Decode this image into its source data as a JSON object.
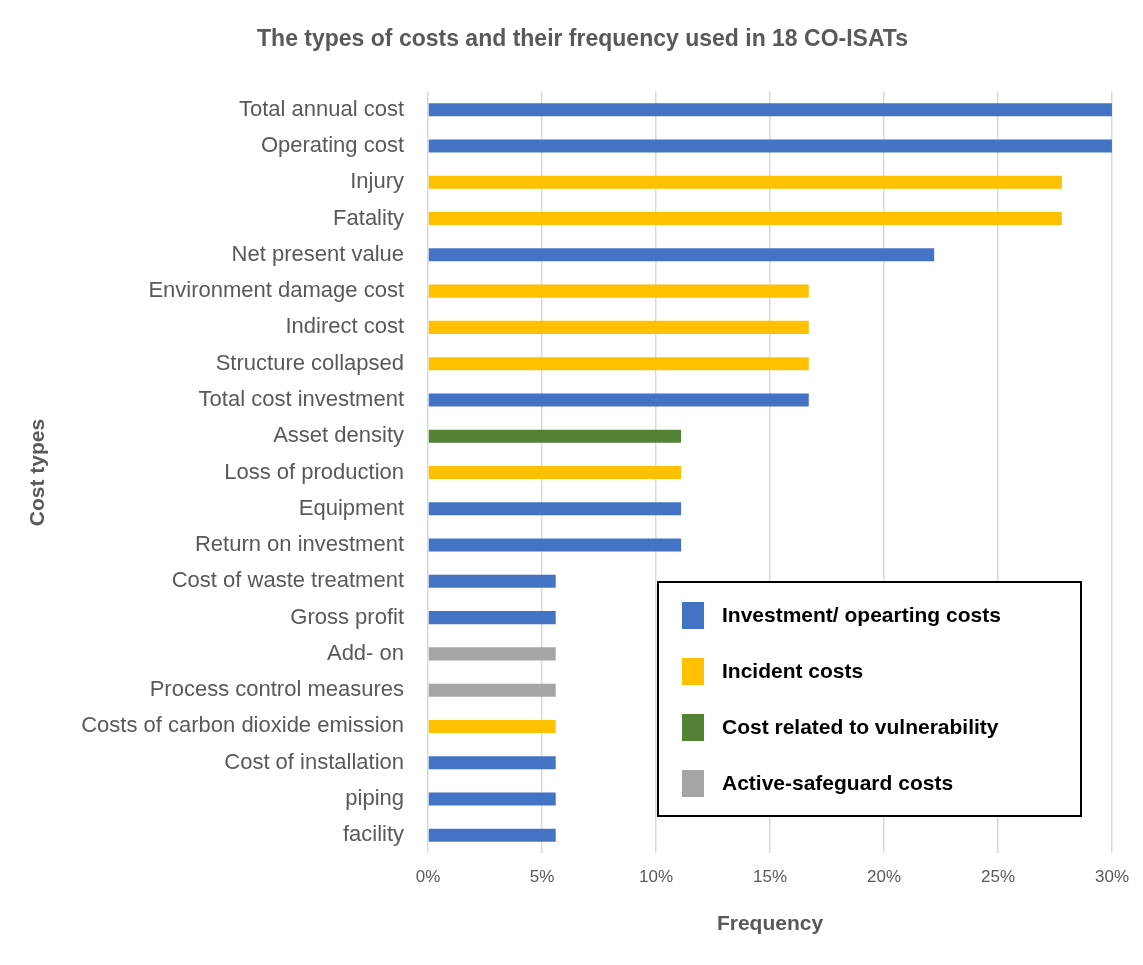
{
  "chart_data": {
    "type": "bar",
    "orientation": "horizontal",
    "title": "The types of costs and their frequency used in 18 CO-ISATs",
    "xlabel": "Frequency",
    "ylabel": "Cost types",
    "categories": [
      "Total annual cost",
      "Operating cost",
      "Injury",
      "Fatality",
      "Net present value",
      "Environment damage cost",
      "Indirect cost",
      "Structure collapsed",
      "Total cost investment",
      "Asset density",
      "Loss of production",
      "Equipment",
      "Return on investment",
      "Cost of waste treatment",
      "Gross profit",
      "Add- on",
      "Process control measures",
      "Costs of carbon dioxide emission",
      "Cost of installation",
      "piping",
      "facility"
    ],
    "series": [
      {
        "name": "Investment/ opearting costs",
        "color": "#4472c4",
        "values": [
          30,
          30,
          null,
          null,
          22.2,
          null,
          null,
          null,
          16.7,
          null,
          null,
          11.1,
          11.1,
          5.6,
          5.6,
          null,
          null,
          null,
          5.6,
          5.6,
          5.6
        ]
      },
      {
        "name": "Incident costs",
        "color": "#ffc000",
        "values": [
          null,
          null,
          27.8,
          27.8,
          null,
          16.7,
          16.7,
          16.7,
          null,
          null,
          11.1,
          null,
          null,
          null,
          null,
          null,
          null,
          5.6,
          null,
          null,
          null
        ]
      },
      {
        "name": "Cost related to vulnerability",
        "color": "#548235",
        "values": [
          null,
          null,
          null,
          null,
          null,
          null,
          null,
          null,
          null,
          11.1,
          null,
          null,
          null,
          null,
          null,
          null,
          null,
          null,
          null,
          null,
          null
        ]
      },
      {
        "name": "Active-safeguard costs",
        "color": "#a5a5a5",
        "values": [
          null,
          null,
          null,
          null,
          null,
          null,
          null,
          null,
          null,
          null,
          null,
          null,
          null,
          null,
          null,
          5.6,
          5.6,
          null,
          null,
          null,
          null
        ]
      }
    ],
    "xlim": [
      0,
      30
    ],
    "xticks": [
      {
        "value": 0,
        "label": "0%"
      },
      {
        "value": 5,
        "label": "5%"
      },
      {
        "value": 10,
        "label": "10%"
      },
      {
        "value": 15,
        "label": "15%"
      },
      {
        "value": 20,
        "label": "20%"
      },
      {
        "value": 25,
        "label": "25%"
      },
      {
        "value": 30,
        "label": "30%"
      }
    ],
    "grid": "x",
    "legend": "bottom right"
  }
}
